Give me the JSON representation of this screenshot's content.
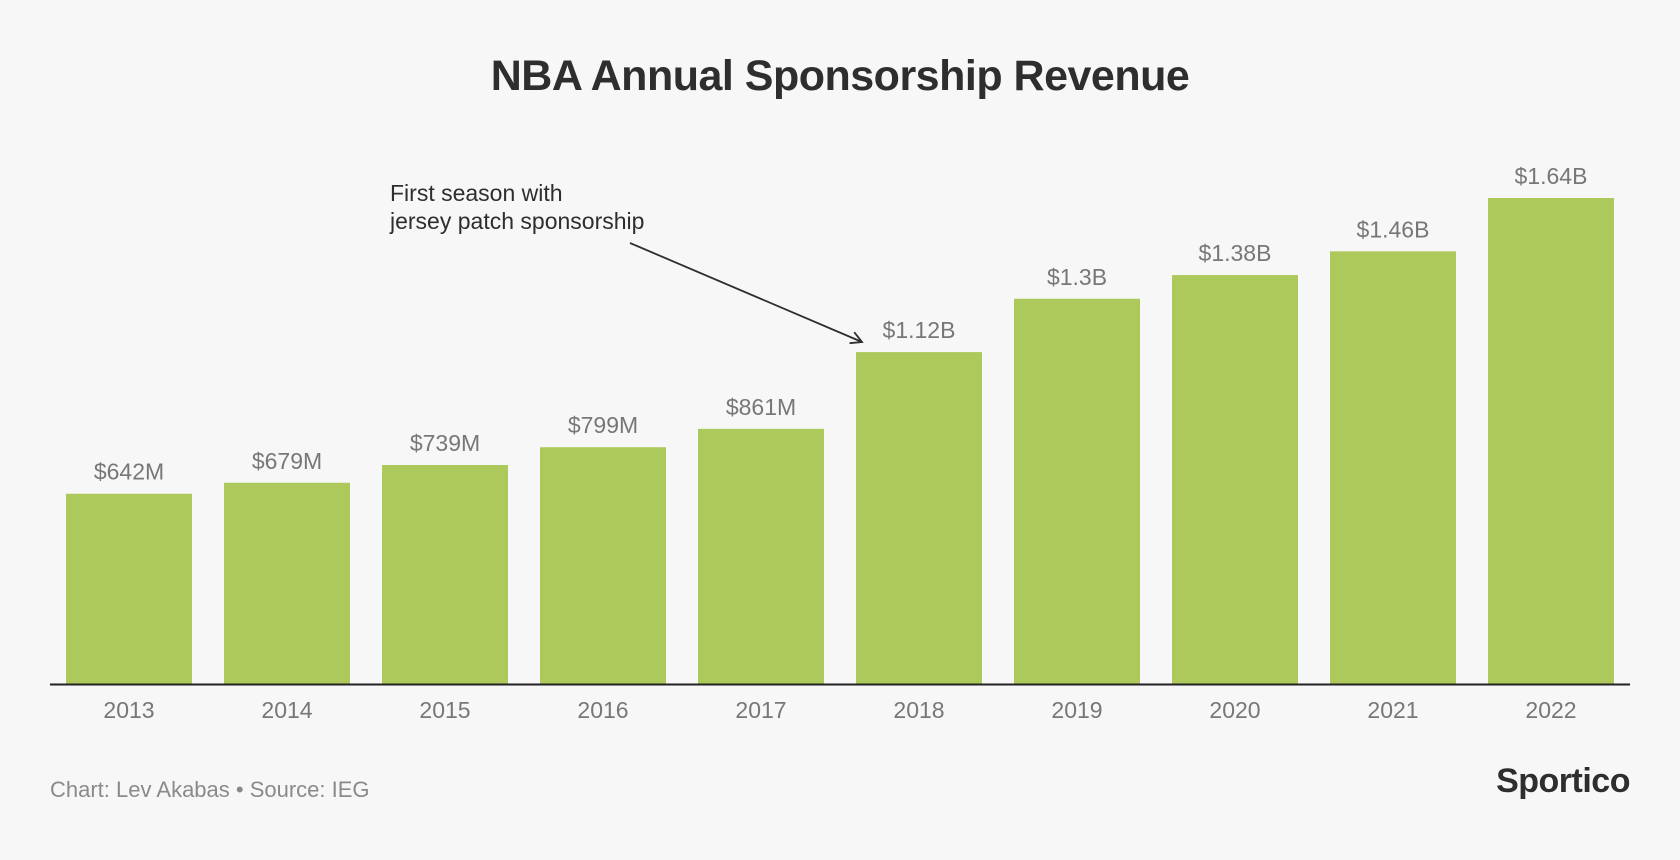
{
  "title": "NBA Annual Sponsorship Revenue",
  "footer": {
    "credit": "Chart: Lev Akabas • Source: IEG",
    "brand": "Sportico"
  },
  "colors": {
    "bar": "#adc95b",
    "axis": "#222222",
    "label": "#777777",
    "annotation": "#2e2e2e"
  },
  "chart_data": {
    "type": "bar",
    "categories": [
      "2013",
      "2014",
      "2015",
      "2016",
      "2017",
      "2018",
      "2019",
      "2020",
      "2021",
      "2022"
    ],
    "values": [
      642,
      679,
      739,
      799,
      861,
      1120,
      1300,
      1380,
      1460,
      1640
    ],
    "value_unit": "$M",
    "data_labels": [
      "$642M",
      "$679M",
      "$739M",
      "$799M",
      "$861M",
      "$1.12B",
      "$1.3B",
      "$1.38B",
      "$1.46B",
      "$1.64B"
    ],
    "ylim": [
      0,
      1640
    ],
    "grid": false,
    "legend": "none",
    "annotation": {
      "lines": [
        "First season with",
        "jersey patch sponsorship"
      ],
      "points_to": "2018"
    }
  }
}
